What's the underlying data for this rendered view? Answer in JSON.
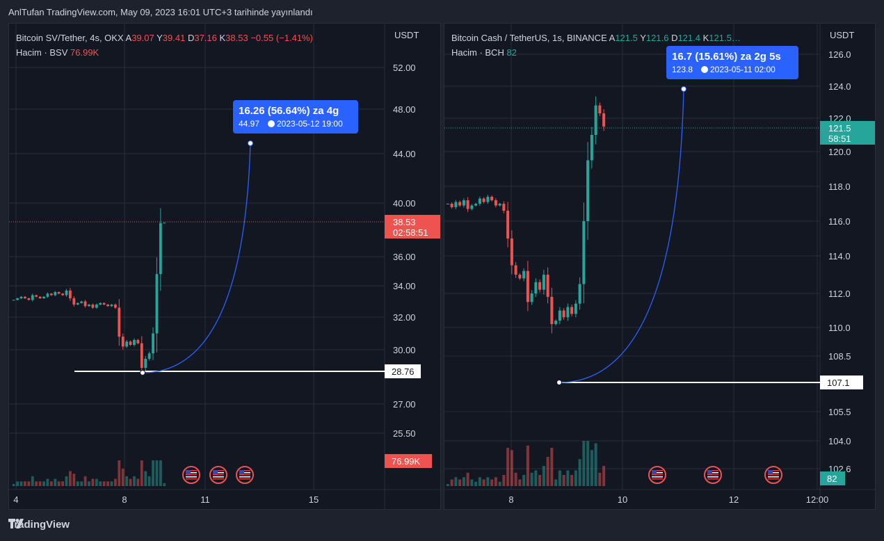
{
  "header": {
    "title": "AnlTufan TradingView.com, May 09, 2023 16:01 UTC+3 tarihinde yayınlandı"
  },
  "footer": {
    "brand": "TradingView",
    "logo_icon": "tradingview-logo-icon"
  },
  "colors": {
    "up": "#26a69a",
    "down": "#ef5350",
    "bg": "#131722",
    "grid": "#2a2e39",
    "text": "#d1d4dc",
    "accent": "#2962ff"
  },
  "chart_data": [
    {
      "type": "candlestick",
      "currency": "USDT",
      "legend": {
        "symbol": "Bitcoin SV/Tether, 4s, OKX",
        "open_label": "A",
        "open": "39.07",
        "high_label": "Y",
        "high": "39.41",
        "low_label": "D",
        "low": "37.16",
        "close_label": "K",
        "close": "38.53",
        "change": "−0.55 (−1.41%)",
        "volume_label": "Hacim · BSV",
        "volume": "76.99K"
      },
      "y_ticks": [
        "52.00",
        "48.00",
        "44.00",
        "40.00",
        "36.00",
        "34.00",
        "32.00",
        "30.00",
        "27.00",
        "25.50"
      ],
      "x_ticks": [
        "4",
        "8",
        "11",
        "15"
      ],
      "last_price": {
        "value": "38.53",
        "countdown": "02:58:51"
      },
      "volume_label_box": "76.99K",
      "horizontal_line": {
        "value": "28.76"
      },
      "projection": {
        "line1": "16.26 (56.64%) za 4g",
        "price": "44.97",
        "date": "2023-05-12  19:00"
      },
      "event_icons": [
        "us-flag-icon",
        "us-flag-icon",
        "us-flag-icon"
      ],
      "close_series": [
        33.1,
        33.2,
        33.3,
        33.2,
        33.1,
        33.4,
        33.3,
        33.2,
        33.3,
        33.5,
        33.4,
        33.6,
        33.5,
        33.4,
        33.7,
        33.2,
        32.8,
        32.9,
        33.0,
        32.7,
        32.8,
        32.6,
        32.8,
        32.9,
        32.8,
        32.7,
        32.8,
        32.6,
        30.8,
        30.2,
        30.5,
        30.3,
        30.6,
        30.4,
        29.0,
        29.5,
        29.8,
        31.0,
        34.8,
        38.5,
        38.53
      ]
    },
    {
      "type": "candlestick",
      "currency": "USDT",
      "legend": {
        "symbol": "Bitcoin Cash / TetherUS, 1s, BINANCE",
        "open_label": "A",
        "open": "121.5",
        "high_label": "Y",
        "high": "121.6",
        "low_label": "D",
        "low": "121.4",
        "close_label": "K",
        "close": "121.5…",
        "volume_label": "Hacim · BCH",
        "volume": "82"
      },
      "y_ticks": [
        "126.0",
        "124.0",
        "122.0",
        "120.0",
        "118.0",
        "116.0",
        "114.0",
        "112.0",
        "110.0",
        "108.5",
        "105.5",
        "104.0",
        "102.6"
      ],
      "x_ticks": [
        "8",
        "10",
        "12",
        "12:00"
      ],
      "last_price": {
        "value": "121.5",
        "countdown": "58:51"
      },
      "volume_label_box": "82",
      "horizontal_line": {
        "value": "107.1"
      },
      "projection": {
        "line1": "16.7 (15.61%) za 2g 5s",
        "price": "123.8",
        "date": "2023-05-11  02:00"
      },
      "event_icons": [
        "us-flag-icon",
        "us-flag-icon",
        "us-flag-icon"
      ],
      "close_series": [
        117.0,
        116.8,
        117.1,
        116.9,
        117.2,
        116.7,
        116.9,
        117.0,
        117.3,
        117.1,
        117.4,
        117.2,
        116.9,
        117.0,
        116.6,
        115.0,
        113.5,
        113.0,
        112.8,
        113.2,
        111.5,
        112.0,
        112.6,
        112.2,
        113.0,
        111.8,
        110.2,
        110.4,
        111.0,
        110.6,
        111.2,
        110.8,
        111.4,
        112.5,
        116.0,
        119.5,
        121.0,
        122.8,
        122.3,
        121.5
      ]
    }
  ]
}
